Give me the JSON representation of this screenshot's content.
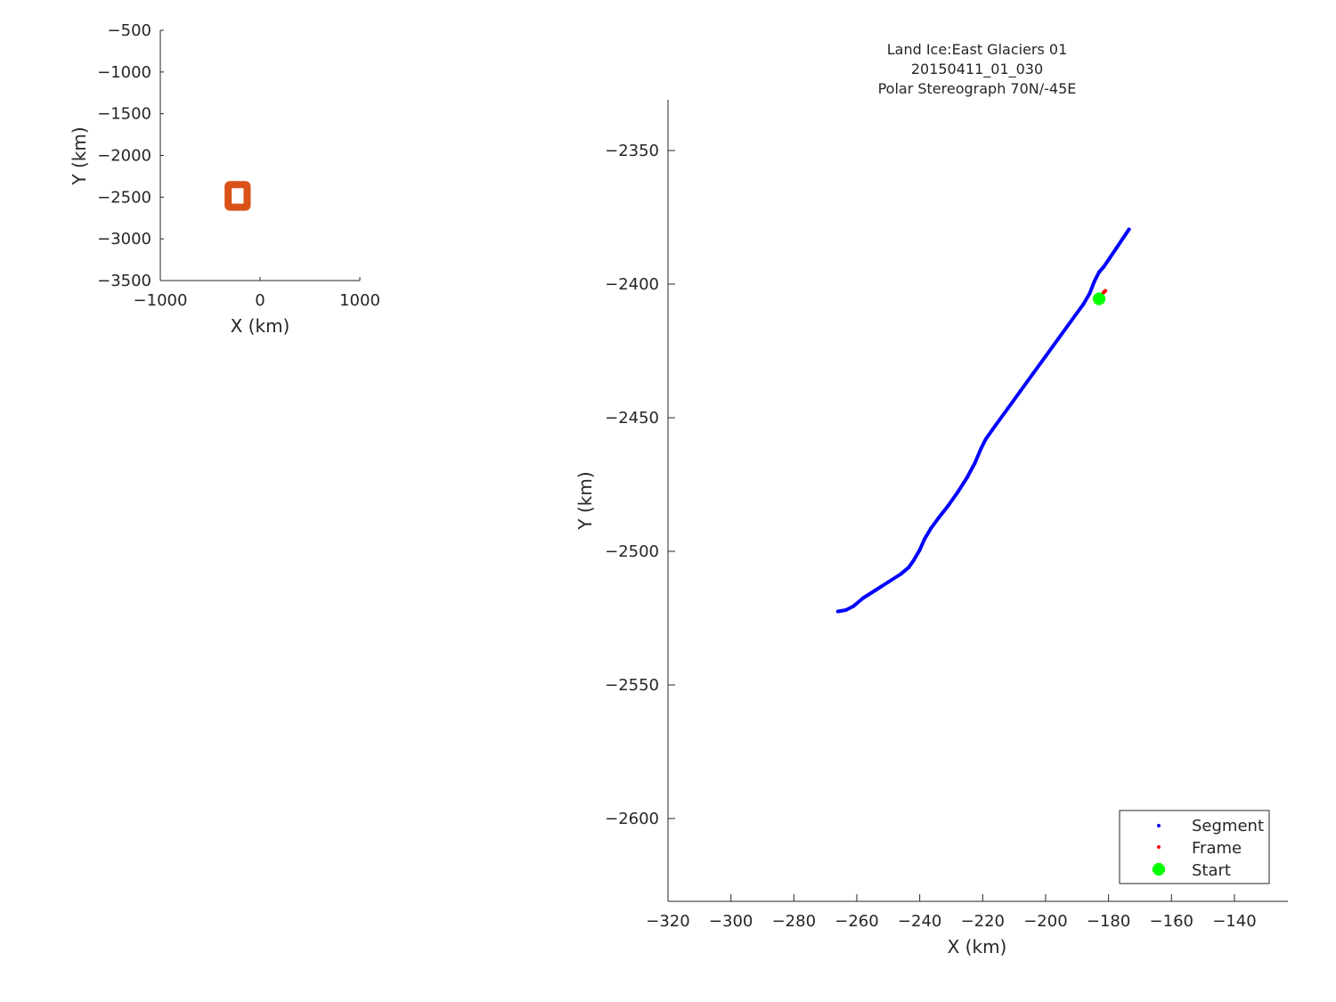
{
  "chart_data": [
    {
      "type": "scatter",
      "panel": "overview",
      "xlabel": "X (km)",
      "ylabel": "Y (km)",
      "xlim": [
        -1000,
        1000
      ],
      "ylim": [
        -3500,
        -500
      ],
      "xticks": [
        -1000,
        0,
        1000
      ],
      "xtick_labels": [
        "−1000",
        "0",
        "1000"
      ],
      "yticks": [
        -500,
        -1000,
        -1500,
        -2000,
        -2500,
        -3000,
        -3500
      ],
      "ytick_labels": [
        "−500",
        "−1000",
        "−1500",
        "−2000",
        "−2500",
        "−3000",
        "−3500"
      ],
      "grid": false,
      "color": "#d95319",
      "highlight_box": {
        "x_range": [
          -320,
          -130
        ],
        "y_range": [
          -2620,
          -2350
        ]
      }
    },
    {
      "type": "scatter",
      "panel": "detail",
      "title_lines": [
        "Land Ice:East Glaciers 01",
        "20150411_01_030",
        "Polar Stereograph 70N/-45E"
      ],
      "xlabel": "X (km)",
      "ylabel": "Y (km)",
      "xlim": [
        -320,
        -123
      ],
      "ylim": [
        -2631,
        -2331
      ],
      "xticks": [
        -320,
        -300,
        -280,
        -260,
        -240,
        -220,
        -200,
        -180,
        -160,
        -140
      ],
      "xtick_labels": [
        "−320",
        "−300",
        "−280",
        "−260",
        "−240",
        "−220",
        "−200",
        "−180",
        "−160",
        "−140"
      ],
      "yticks": [
        -2350,
        -2400,
        -2450,
        -2500,
        -2550,
        -2600
      ],
      "ytick_labels": [
        "−2350",
        "−2400",
        "−2450",
        "−2500",
        "−2550",
        "−2600"
      ],
      "grid": false,
      "legend_position": "bottom-right",
      "series": [
        {
          "name": "Segment",
          "color": "#0000ff",
          "x": [
            -266.0,
            -263.5,
            -261.0,
            -258.0,
            -254.0,
            -250.0,
            -246.0,
            -243.5,
            -242.0,
            -240.0,
            -238.5,
            -236.5,
            -234.0,
            -231.0,
            -228.0,
            -225.0,
            -222.5,
            -220.5,
            -219.0,
            -216.0,
            -212.0,
            -208.0,
            -204.0,
            -200.0,
            -196.0,
            -192.0,
            -188.0,
            -186.0,
            -184.5,
            -183.0,
            -181.5,
            -179.5,
            -177.5,
            -175.5,
            -173.5
          ],
          "y": [
            -2522.5,
            -2522.0,
            -2520.5,
            -2517.5,
            -2514.5,
            -2511.5,
            -2508.5,
            -2506.0,
            -2503.5,
            -2499.5,
            -2495.5,
            -2491.5,
            -2487.5,
            -2483.0,
            -2478.0,
            -2472.5,
            -2467.0,
            -2461.5,
            -2458.0,
            -2453.0,
            -2446.5,
            -2440.0,
            -2433.5,
            -2427.0,
            -2420.5,
            -2414.0,
            -2407.5,
            -2403.5,
            -2399.0,
            -2395.5,
            -2393.5,
            -2390.0,
            -2386.5,
            -2383.0,
            -2379.5
          ]
        },
        {
          "name": "Frame",
          "color": "#ff0000",
          "x": [
            -183.0,
            -182.5,
            -182.0,
            -181.5,
            -181.0
          ],
          "y": [
            -2405.5,
            -2405.0,
            -2404.0,
            -2403.0,
            -2402.5
          ]
        },
        {
          "name": "Start",
          "color": "#00ff00",
          "x": [
            -183.0
          ],
          "y": [
            -2405.5
          ]
        }
      ]
    }
  ]
}
